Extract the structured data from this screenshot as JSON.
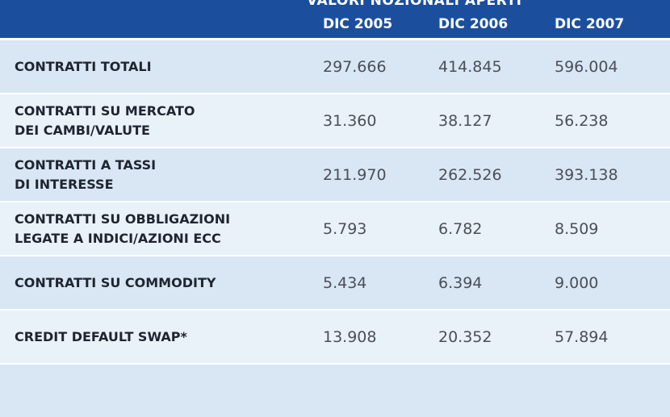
{
  "table": {
    "super_header": "VALORI NOZIONALI APERTI",
    "columns": [
      "DIC 2005",
      "DIC 2006",
      "DIC 2007"
    ],
    "rows": [
      {
        "label": [
          "CONTRATTI TOTALI"
        ],
        "values": [
          "297.666",
          "414.845",
          "596.004"
        ]
      },
      {
        "label": [
          "CONTRATTI SU MERCATO",
          "DEI CAMBI/VALUTE"
        ],
        "values": [
          "31.360",
          "38.127",
          "56.238"
        ]
      },
      {
        "label": [
          "CONTRATTI A TASSI",
          "DI INTERESSE"
        ],
        "values": [
          "211.970",
          "262.526",
          "393.138"
        ]
      },
      {
        "label": [
          "CONTRATTI SU OBBLIGAZIONI",
          "LEGATE A INDICI/AZIONI ECC"
        ],
        "values": [
          "5.793",
          "6.782",
          "8.509"
        ]
      },
      {
        "label": [
          "CONTRATTI SU COMMODITY"
        ],
        "values": [
          "5.434",
          "6.394",
          "9.000"
        ]
      },
      {
        "label": [
          "CREDIT DEFAULT SWAP*"
        ],
        "values": [
          "13.908",
          "20.352",
          "57.894"
        ]
      }
    ]
  }
}
